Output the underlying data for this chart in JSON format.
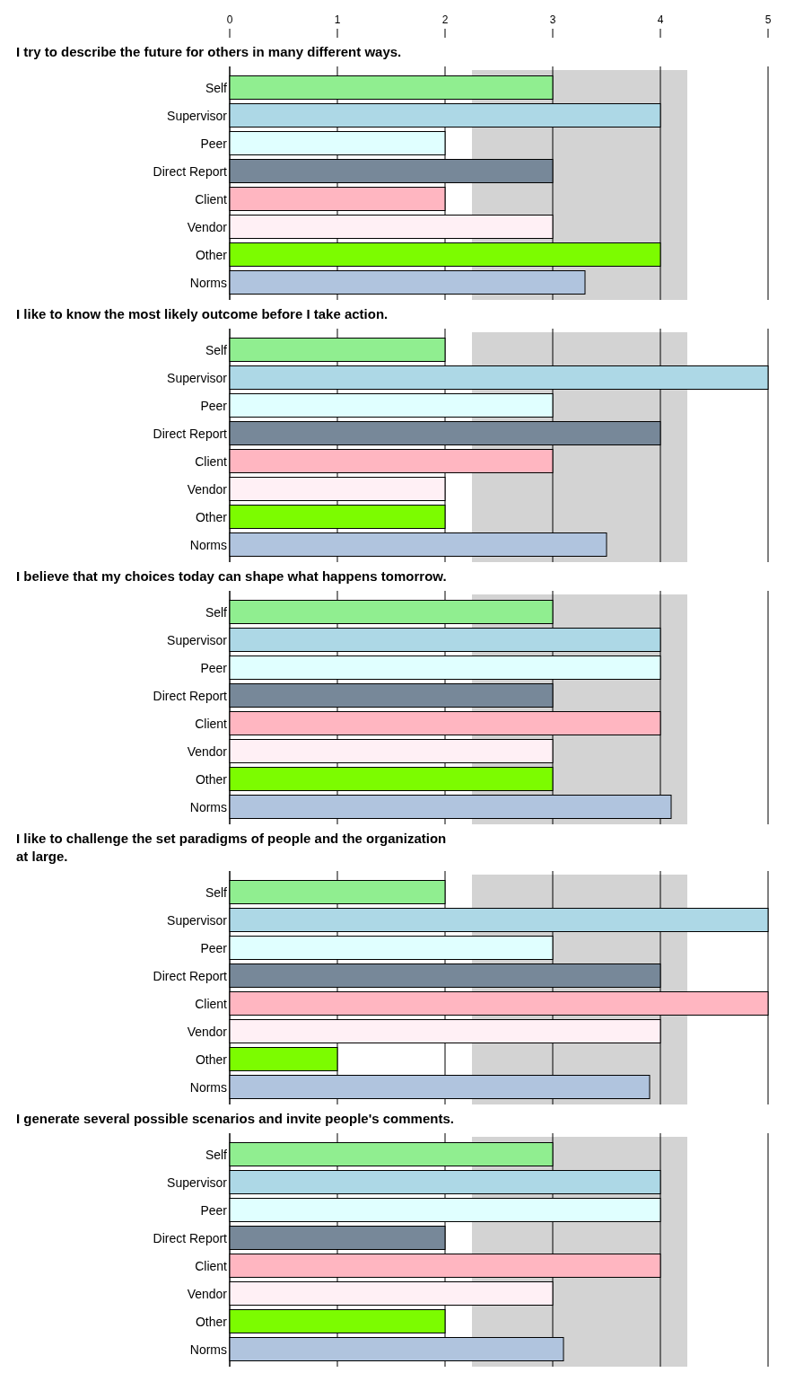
{
  "chart_data": [
    {
      "type": "bar",
      "orientation": "horizontal",
      "title": "I try to describe the future for others in many different ways.",
      "categories": [
        "Self",
        "Supervisor",
        "Peer",
        "Direct Report",
        "Client",
        "Vendor",
        "Other",
        "Norms"
      ],
      "values": [
        3,
        4,
        2,
        3,
        2,
        3,
        4,
        3.3
      ],
      "colors": [
        "#90ee90",
        "#add8e6",
        "#e0ffff",
        "#778899",
        "#ffb6c1",
        "#fff0f5",
        "#7cfc00",
        "#b0c4de"
      ],
      "xlim": [
        0,
        5
      ],
      "xticks": [
        0,
        1,
        2,
        3,
        4,
        5
      ],
      "grid": "x",
      "bands": [
        {
          "axis": "x",
          "from": 2.25,
          "to": 4.25,
          "color": "#d3d3d3"
        }
      ]
    },
    {
      "type": "bar",
      "orientation": "horizontal",
      "title": "I like to know the most likely outcome before I take action.",
      "categories": [
        "Self",
        "Supervisor",
        "Peer",
        "Direct Report",
        "Client",
        "Vendor",
        "Other",
        "Norms"
      ],
      "values": [
        2,
        5,
        3,
        4,
        3,
        2,
        2,
        3.5
      ],
      "colors": [
        "#90ee90",
        "#add8e6",
        "#e0ffff",
        "#778899",
        "#ffb6c1",
        "#fff0f5",
        "#7cfc00",
        "#b0c4de"
      ],
      "xlim": [
        0,
        5
      ],
      "xticks": [
        0,
        1,
        2,
        3,
        4,
        5
      ],
      "grid": "x",
      "tick_labels": "y",
      "bands": [
        {
          "axis": "x",
          "from": 2.25,
          "to": 4.25,
          "color": "#d3d3d3"
        }
      ]
    },
    {
      "type": "bar",
      "orientation": "horizontal",
      "title": "I believe that my choices today can shape what happens tomorrow.",
      "categories": [
        "Self",
        "Supervisor",
        "Peer",
        "Direct Report",
        "Client",
        "Vendor",
        "Other",
        "Norms"
      ],
      "values": [
        3,
        4,
        4,
        3,
        4,
        3,
        3,
        4.1
      ],
      "colors": [
        "#90ee90",
        "#add8e6",
        "#e0ffff",
        "#778899",
        "#ffb6c1",
        "#fff0f5",
        "#7cfc00",
        "#b0c4de"
      ],
      "xlim": [
        0,
        5
      ],
      "xticks": [
        0,
        1,
        2,
        3,
        4,
        5
      ],
      "grid": "x",
      "tick_labels": "y",
      "bands": [
        {
          "axis": "x",
          "from": 2.25,
          "to": 4.25,
          "color": "#d3d3d3"
        }
      ]
    },
    {
      "type": "bar",
      "orientation": "horizontal",
      "title": "I like to challenge the set paradigms of people and the organization at large.",
      "categories": [
        "Self",
        "Supervisor",
        "Peer",
        "Direct Report",
        "Client",
        "Vendor",
        "Other",
        "Norms"
      ],
      "values": [
        2,
        5,
        3,
        4,
        5,
        4,
        1,
        3.9
      ],
      "colors": [
        "#90ee90",
        "#add8e6",
        "#e0ffff",
        "#778899",
        "#ffb6c1",
        "#fff0f5",
        "#7cfc00",
        "#b0c4de"
      ],
      "xlim": [
        0,
        5
      ],
      "xticks": [
        0,
        1,
        2,
        3,
        4,
        5
      ],
      "grid": "x",
      "tick_labels": "y",
      "bands": [
        {
          "axis": "x",
          "from": 2.25,
          "to": 4.25,
          "color": "#d3d3d3"
        }
      ]
    },
    {
      "type": "bar",
      "orientation": "horizontal",
      "title": "I generate several possible scenarios and invite people's comments.",
      "categories": [
        "Self",
        "Supervisor",
        "Peer",
        "Direct Report",
        "Client",
        "Vendor",
        "Other",
        "Norms"
      ],
      "values": [
        3,
        4,
        4,
        2,
        4,
        3,
        2,
        3.1
      ],
      "colors": [
        "#90ee90",
        "#add8e6",
        "#e0ffff",
        "#778899",
        "#ffb6c1",
        "#fff0f5",
        "#7cfc00",
        "#b0c4de"
      ],
      "xlim": [
        0,
        5
      ],
      "xticks": [
        0,
        1,
        2,
        3,
        4,
        5
      ],
      "grid": "x",
      "tick_labels": "y",
      "bands": [
        {
          "axis": "x",
          "from": 2.25,
          "to": 4.25,
          "color": "#d3d3d3"
        }
      ]
    }
  ]
}
